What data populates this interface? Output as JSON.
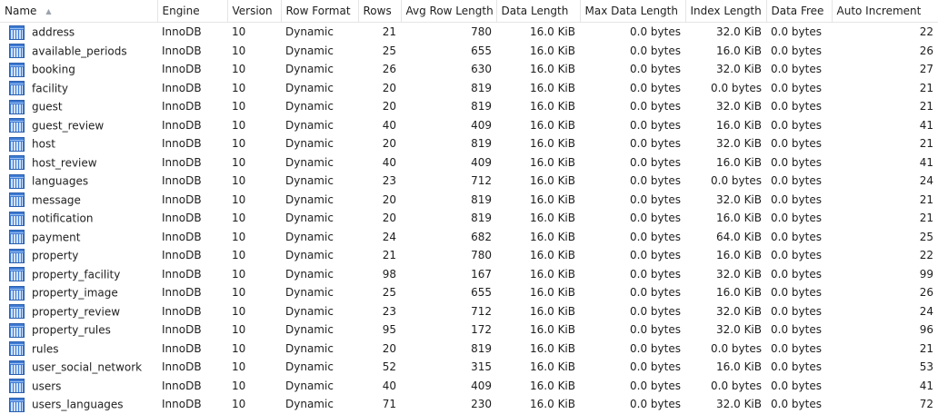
{
  "columns": [
    {
      "key": "name",
      "label": "Name",
      "sorted": "asc"
    },
    {
      "key": "engine",
      "label": "Engine"
    },
    {
      "key": "version",
      "label": "Version"
    },
    {
      "key": "row_format",
      "label": "Row Format"
    },
    {
      "key": "rows",
      "label": "Rows"
    },
    {
      "key": "avg_row_length",
      "label": "Avg Row Length"
    },
    {
      "key": "data_length",
      "label": "Data Length"
    },
    {
      "key": "max_data_length",
      "label": "Max Data Length"
    },
    {
      "key": "index_length",
      "label": "Index Length"
    },
    {
      "key": "data_free",
      "label": "Data Free"
    },
    {
      "key": "auto_increment",
      "label": "Auto Increment"
    }
  ],
  "sort_icon": "sort-ascending-icon",
  "row_icon": "table-icon",
  "rows": [
    {
      "name": "address",
      "engine": "InnoDB",
      "version": "10",
      "row_format": "Dynamic",
      "rows": "21",
      "avg_row_length": "780",
      "data_length": "16.0 KiB",
      "max_data_length": "0.0 bytes",
      "index_length": "32.0 KiB",
      "data_free": "0.0 bytes",
      "auto_increment": "22"
    },
    {
      "name": "available_periods",
      "engine": "InnoDB",
      "version": "10",
      "row_format": "Dynamic",
      "rows": "25",
      "avg_row_length": "655",
      "data_length": "16.0 KiB",
      "max_data_length": "0.0 bytes",
      "index_length": "16.0 KiB",
      "data_free": "0.0 bytes",
      "auto_increment": "26"
    },
    {
      "name": "booking",
      "engine": "InnoDB",
      "version": "10",
      "row_format": "Dynamic",
      "rows": "26",
      "avg_row_length": "630",
      "data_length": "16.0 KiB",
      "max_data_length": "0.0 bytes",
      "index_length": "32.0 KiB",
      "data_free": "0.0 bytes",
      "auto_increment": "27"
    },
    {
      "name": "facility",
      "engine": "InnoDB",
      "version": "10",
      "row_format": "Dynamic",
      "rows": "20",
      "avg_row_length": "819",
      "data_length": "16.0 KiB",
      "max_data_length": "0.0 bytes",
      "index_length": "0.0 bytes",
      "data_free": "0.0 bytes",
      "auto_increment": "21"
    },
    {
      "name": "guest",
      "engine": "InnoDB",
      "version": "10",
      "row_format": "Dynamic",
      "rows": "20",
      "avg_row_length": "819",
      "data_length": "16.0 KiB",
      "max_data_length": "0.0 bytes",
      "index_length": "32.0 KiB",
      "data_free": "0.0 bytes",
      "auto_increment": "21"
    },
    {
      "name": "guest_review",
      "engine": "InnoDB",
      "version": "10",
      "row_format": "Dynamic",
      "rows": "40",
      "avg_row_length": "409",
      "data_length": "16.0 KiB",
      "max_data_length": "0.0 bytes",
      "index_length": "16.0 KiB",
      "data_free": "0.0 bytes",
      "auto_increment": "41"
    },
    {
      "name": "host",
      "engine": "InnoDB",
      "version": "10",
      "row_format": "Dynamic",
      "rows": "20",
      "avg_row_length": "819",
      "data_length": "16.0 KiB",
      "max_data_length": "0.0 bytes",
      "index_length": "32.0 KiB",
      "data_free": "0.0 bytes",
      "auto_increment": "21"
    },
    {
      "name": "host_review",
      "engine": "InnoDB",
      "version": "10",
      "row_format": "Dynamic",
      "rows": "40",
      "avg_row_length": "409",
      "data_length": "16.0 KiB",
      "max_data_length": "0.0 bytes",
      "index_length": "16.0 KiB",
      "data_free": "0.0 bytes",
      "auto_increment": "41"
    },
    {
      "name": "languages",
      "engine": "InnoDB",
      "version": "10",
      "row_format": "Dynamic",
      "rows": "23",
      "avg_row_length": "712",
      "data_length": "16.0 KiB",
      "max_data_length": "0.0 bytes",
      "index_length": "0.0 bytes",
      "data_free": "0.0 bytes",
      "auto_increment": "24"
    },
    {
      "name": "message",
      "engine": "InnoDB",
      "version": "10",
      "row_format": "Dynamic",
      "rows": "20",
      "avg_row_length": "819",
      "data_length": "16.0 KiB",
      "max_data_length": "0.0 bytes",
      "index_length": "32.0 KiB",
      "data_free": "0.0 bytes",
      "auto_increment": "21"
    },
    {
      "name": "notification",
      "engine": "InnoDB",
      "version": "10",
      "row_format": "Dynamic",
      "rows": "20",
      "avg_row_length": "819",
      "data_length": "16.0 KiB",
      "max_data_length": "0.0 bytes",
      "index_length": "16.0 KiB",
      "data_free": "0.0 bytes",
      "auto_increment": "21"
    },
    {
      "name": "payment",
      "engine": "InnoDB",
      "version": "10",
      "row_format": "Dynamic",
      "rows": "24",
      "avg_row_length": "682",
      "data_length": "16.0 KiB",
      "max_data_length": "0.0 bytes",
      "index_length": "64.0 KiB",
      "data_free": "0.0 bytes",
      "auto_increment": "25"
    },
    {
      "name": "property",
      "engine": "InnoDB",
      "version": "10",
      "row_format": "Dynamic",
      "rows": "21",
      "avg_row_length": "780",
      "data_length": "16.0 KiB",
      "max_data_length": "0.0 bytes",
      "index_length": "16.0 KiB",
      "data_free": "0.0 bytes",
      "auto_increment": "22"
    },
    {
      "name": "property_facility",
      "engine": "InnoDB",
      "version": "10",
      "row_format": "Dynamic",
      "rows": "98",
      "avg_row_length": "167",
      "data_length": "16.0 KiB",
      "max_data_length": "0.0 bytes",
      "index_length": "32.0 KiB",
      "data_free": "0.0 bytes",
      "auto_increment": "99"
    },
    {
      "name": "property_image",
      "engine": "InnoDB",
      "version": "10",
      "row_format": "Dynamic",
      "rows": "25",
      "avg_row_length": "655",
      "data_length": "16.0 KiB",
      "max_data_length": "0.0 bytes",
      "index_length": "16.0 KiB",
      "data_free": "0.0 bytes",
      "auto_increment": "26"
    },
    {
      "name": "property_review",
      "engine": "InnoDB",
      "version": "10",
      "row_format": "Dynamic",
      "rows": "23",
      "avg_row_length": "712",
      "data_length": "16.0 KiB",
      "max_data_length": "0.0 bytes",
      "index_length": "32.0 KiB",
      "data_free": "0.0 bytes",
      "auto_increment": "24"
    },
    {
      "name": "property_rules",
      "engine": "InnoDB",
      "version": "10",
      "row_format": "Dynamic",
      "rows": "95",
      "avg_row_length": "172",
      "data_length": "16.0 KiB",
      "max_data_length": "0.0 bytes",
      "index_length": "32.0 KiB",
      "data_free": "0.0 bytes",
      "auto_increment": "96"
    },
    {
      "name": "rules",
      "engine": "InnoDB",
      "version": "10",
      "row_format": "Dynamic",
      "rows": "20",
      "avg_row_length": "819",
      "data_length": "16.0 KiB",
      "max_data_length": "0.0 bytes",
      "index_length": "0.0 bytes",
      "data_free": "0.0 bytes",
      "auto_increment": "21"
    },
    {
      "name": "user_social_network",
      "engine": "InnoDB",
      "version": "10",
      "row_format": "Dynamic",
      "rows": "52",
      "avg_row_length": "315",
      "data_length": "16.0 KiB",
      "max_data_length": "0.0 bytes",
      "index_length": "16.0 KiB",
      "data_free": "0.0 bytes",
      "auto_increment": "53"
    },
    {
      "name": "users",
      "engine": "InnoDB",
      "version": "10",
      "row_format": "Dynamic",
      "rows": "40",
      "avg_row_length": "409",
      "data_length": "16.0 KiB",
      "max_data_length": "0.0 bytes",
      "index_length": "0.0 bytes",
      "data_free": "0.0 bytes",
      "auto_increment": "41"
    },
    {
      "name": "users_languages",
      "engine": "InnoDB",
      "version": "10",
      "row_format": "Dynamic",
      "rows": "71",
      "avg_row_length": "230",
      "data_length": "16.0 KiB",
      "max_data_length": "0.0 bytes",
      "index_length": "32.0 KiB",
      "data_free": "0.0 bytes",
      "auto_increment": "72"
    }
  ]
}
